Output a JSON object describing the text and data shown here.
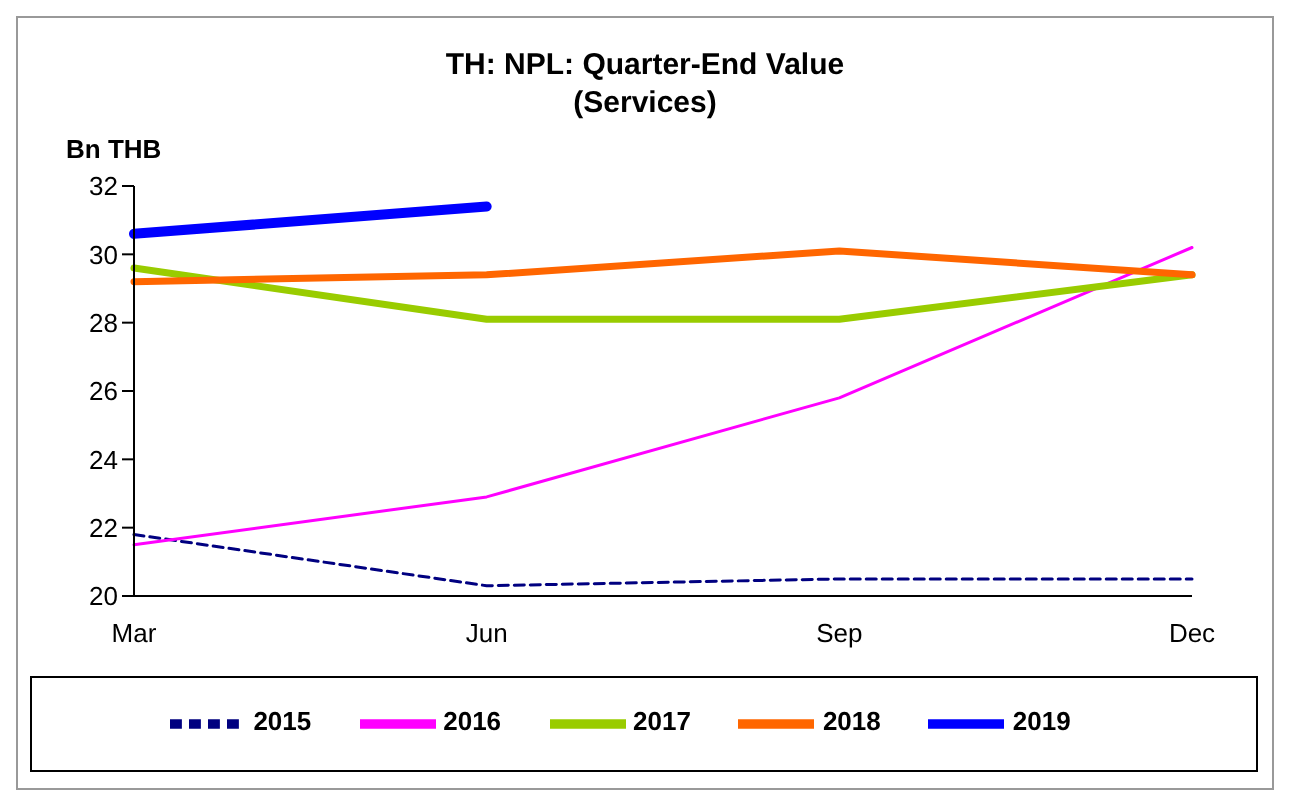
{
  "chart_data": {
    "type": "line",
    "title": "TH: NPL: Quarter-End Value\n(Services)",
    "ylabel": "Bn THB",
    "categories": [
      "Mar",
      "Jun",
      "Sep",
      "Dec"
    ],
    "series": [
      {
        "name": "2015",
        "color": "#000080",
        "line_style": "dashed",
        "values": [
          21.8,
          20.3,
          20.5,
          20.5
        ]
      },
      {
        "name": "2016",
        "color": "#ff00ff",
        "values": [
          21.5,
          22.9,
          25.8,
          30.2
        ]
      },
      {
        "name": "2017",
        "color": "#99cc00",
        "values": [
          29.6,
          28.1,
          28.1,
          29.4
        ]
      },
      {
        "name": "2018",
        "color": "#ff6600",
        "values": [
          29.2,
          29.4,
          30.1,
          29.4
        ]
      },
      {
        "name": "2019",
        "color": "#0000ff",
        "values": [
          30.6,
          31.4,
          null,
          null
        ]
      }
    ],
    "ylim": [
      20,
      32
    ],
    "yticks": [
      20,
      22,
      24,
      26,
      28,
      30,
      32
    ],
    "grid": false,
    "legend": "bottom",
    "marker": "none",
    "line_style": "solid"
  }
}
